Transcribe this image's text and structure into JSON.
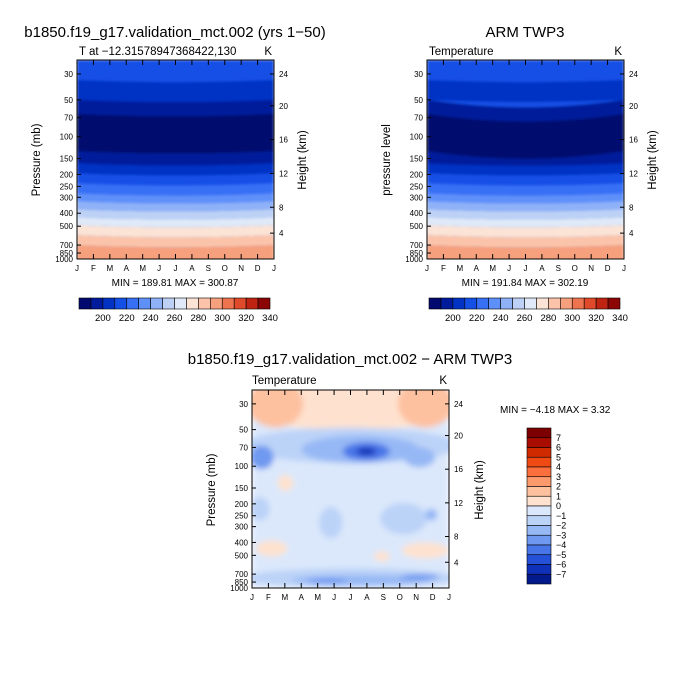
{
  "chart_data": [
    {
      "type": "heatmap",
      "title": "b1850.f19_g17.validation_mct.002 (yrs 1−50)",
      "subtitle": "T at −12.31578947368422,130",
      "units": "K",
      "ylabel": "Pressure (mb)",
      "y2label": "Height (km)",
      "x_ticks": [
        "J",
        "F",
        "M",
        "A",
        "M",
        "J",
        "J",
        "A",
        "S",
        "O",
        "N",
        "D",
        "J"
      ],
      "y_ticks": [
        "30",
        "50",
        "70",
        "100",
        "150",
        "200",
        "250",
        "300",
        "400",
        "500",
        "700",
        "850",
        "1000"
      ],
      "y2_ticks": [
        "24",
        "20",
        "16",
        "12",
        "8",
        "4"
      ],
      "stats": "MIN = 189.81  MAX = 300.87",
      "min": 189.81,
      "max": 300.87,
      "colorbar_ticks": [
        "200",
        "220",
        "240",
        "260",
        "280",
        "300",
        "320",
        "340"
      ]
    },
    {
      "type": "heatmap",
      "title": "ARM TWP3",
      "subtitle": "Temperature",
      "units": "K",
      "ylabel": "pressure level",
      "y2label": "Height (km)",
      "x_ticks": [
        "J",
        "F",
        "M",
        "A",
        "M",
        "J",
        "J",
        "A",
        "S",
        "O",
        "N",
        "D",
        "J"
      ],
      "y_ticks": [
        "30",
        "50",
        "70",
        "100",
        "150",
        "200",
        "250",
        "300",
        "400",
        "500",
        "700",
        "850",
        "1000"
      ],
      "y2_ticks": [
        "24",
        "20",
        "16",
        "12",
        "8",
        "4"
      ],
      "stats": "MIN = 191.84  MAX = 302.19",
      "min": 191.84,
      "max": 302.19,
      "colorbar_ticks": [
        "200",
        "220",
        "240",
        "260",
        "280",
        "300",
        "320",
        "340"
      ]
    },
    {
      "type": "heatmap",
      "title": "b1850.f19_g17.validation_mct.002 − ARM TWP3",
      "subtitle": "Temperature",
      "units": "K",
      "ylabel": "Pressure (mb)",
      "y2label": "Height (km)",
      "x_ticks": [
        "J",
        "F",
        "M",
        "A",
        "M",
        "J",
        "J",
        "A",
        "S",
        "O",
        "N",
        "D",
        "J"
      ],
      "y_ticks": [
        "30",
        "50",
        "70",
        "100",
        "150",
        "200",
        "250",
        "300",
        "400",
        "500",
        "700",
        "850",
        "1000"
      ],
      "y2_ticks": [
        "24",
        "20",
        "16",
        "12",
        "8",
        "4"
      ],
      "stats": "MIN =   −4.18 MAX =    3.32",
      "min": -4.18,
      "max": 3.32,
      "colorbar_ticks": [
        "7",
        "6",
        "5",
        "4",
        "3",
        "2",
        "1",
        "0",
        "−1",
        "−2",
        "−3",
        "−4",
        "−5",
        "−6",
        "−7"
      ]
    }
  ],
  "colors": {
    "abs_scale": [
      "#000a6e",
      "#001b9b",
      "#0033c4",
      "#1450e6",
      "#3770f5",
      "#5e90fa",
      "#8eb1f8",
      "#bcd1f5",
      "#dfe9f8",
      "#fbe3d6",
      "#fbc4aa",
      "#f7a07e",
      "#ee7450",
      "#de4a2a",
      "#bf2412",
      "#8c0606"
    ],
    "diff_scale": [
      "#7c0000",
      "#a80d00",
      "#cf2a00",
      "#ef4a14",
      "#fb6f3e",
      "#fc9a6e",
      "#fdc1a0",
      "#fee2cf",
      "#dbe8fb",
      "#bcd3f8",
      "#96b8f5",
      "#6f99f0",
      "#4876e8",
      "#2451d8",
      "#0f30b8",
      "#031a8c"
    ]
  }
}
